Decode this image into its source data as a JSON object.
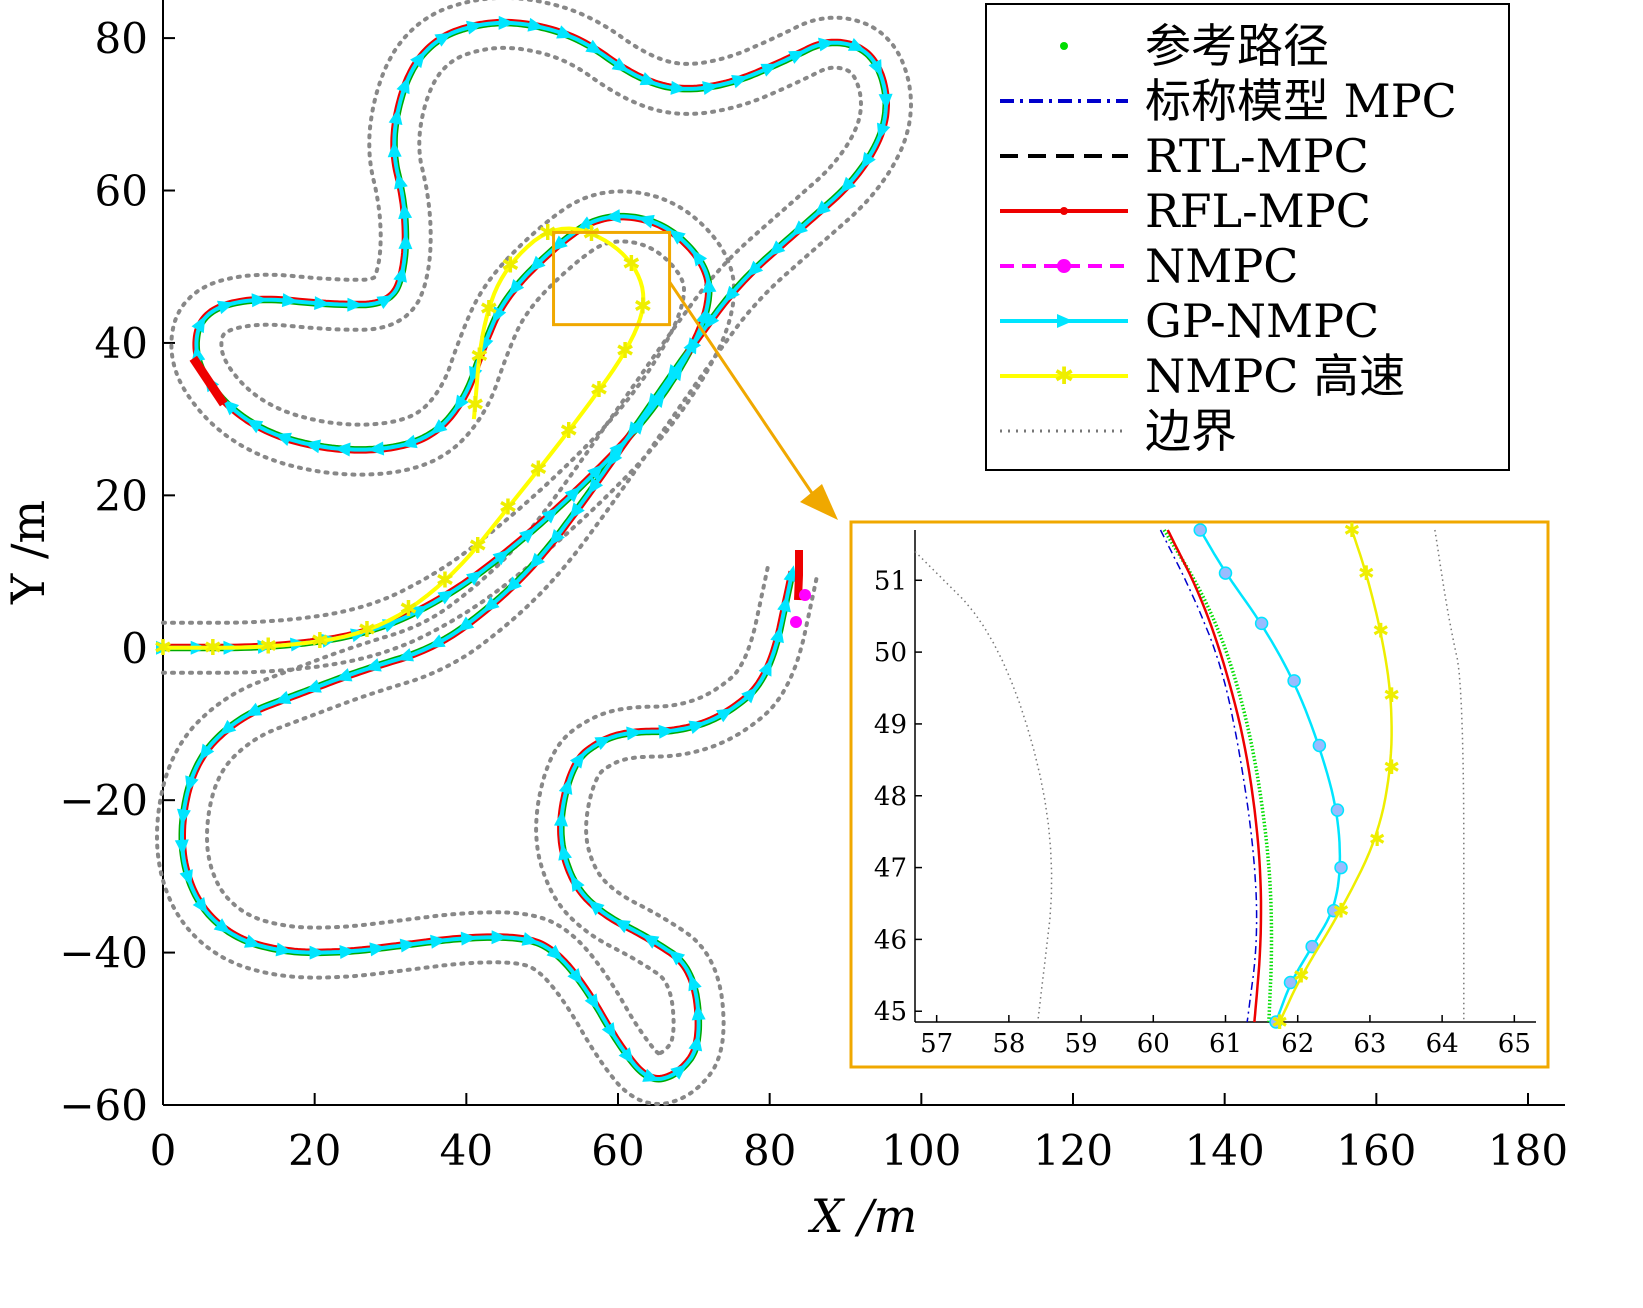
{
  "chart_data": [
    {
      "type": "line",
      "title": "",
      "xlabel": "X /m",
      "ylabel": "Y /m",
      "xlim": [
        0,
        180
      ],
      "ylim": [
        -60,
        85
      ],
      "xticks": [
        "0",
        "20",
        "40",
        "60",
        "80",
        "100",
        "120",
        "140",
        "160",
        "180"
      ],
      "yticks": [
        "−60",
        "−40",
        "−20",
        "0",
        "20",
        "40",
        "60",
        "80"
      ],
      "legend_position": "top-right",
      "legend": [
        {
          "label": "参考路径",
          "color": "#00dd00",
          "style": "dots"
        },
        {
          "label": "标称模型 MPC",
          "color": "#0000cc",
          "style": "dashdot"
        },
        {
          "label": "RTL-MPC",
          "color": "#000000",
          "style": "dashed"
        },
        {
          "label": "RFL-MPC",
          "color": "#ee0000",
          "style": "solid-dot"
        },
        {
          "label": "NMPC",
          "color": "#ff00ff",
          "style": "dashed-circle"
        },
        {
          "label": "GP-NMPC",
          "color": "#00e5ff",
          "style": "solid-triangle"
        },
        {
          "label": "NMPC 高速",
          "color": "#ffff00",
          "style": "solid-star"
        },
        {
          "label": "边界",
          "color": "#777777",
          "style": "dotted"
        }
      ],
      "reference_path": {
        "x": [
          0,
          15,
          28,
          38,
          46,
          54,
          62,
          68,
          72,
          72,
          66,
          58,
          52,
          45,
          42,
          40,
          36,
          30,
          22,
          14,
          8,
          4,
          5,
          12,
          22,
          30,
          32,
          32,
          30,
          32,
          36,
          42,
          48,
          55,
          62,
          68,
          75,
          82,
          88,
          94,
          96,
          92,
          84,
          76,
          70,
          63,
          56,
          50,
          44,
          36,
          26,
          18,
          10,
          4,
          2,
          4,
          9,
          16,
          24,
          32,
          40,
          48,
          52,
          56,
          60,
          64,
          68,
          71,
          70,
          64,
          58,
          54,
          52,
          54,
          58,
          62,
          68,
          74,
          80,
          83
        ],
        "y": [
          0,
          0,
          2,
          7,
          13,
          20,
          28,
          36,
          44,
          50,
          56,
          57,
          53,
          46,
          39,
          33,
          28,
          26,
          26,
          28,
          32,
          38,
          44,
          46,
          45,
          45,
          50,
          58,
          66,
          75,
          80,
          82,
          82,
          80,
          75,
          73,
          74,
          77,
          80,
          78,
          70,
          62,
          55,
          48,
          40,
          30,
          20,
          12,
          6,
          0,
          -3,
          -6,
          -9,
          -15,
          -25,
          -33,
          -38,
          -40,
          -40,
          -39,
          -38,
          -38,
          -40,
          -45,
          -52,
          -57,
          -56,
          -52,
          -42,
          -38,
          -35,
          -31,
          -24,
          -15,
          -12,
          -11,
          -11,
          -9,
          -4,
          10
        ]
      }
    },
    {
      "type": "line",
      "title": "",
      "xlabel": "",
      "ylabel": "",
      "xlim": [
        56.7,
        65.3
      ],
      "ylim": [
        44.85,
        51.7
      ],
      "xticks": [
        "57",
        "58",
        "59",
        "60",
        "61",
        "62",
        "63",
        "64",
        "65"
      ],
      "yticks": [
        "45",
        "46",
        "47",
        "48",
        "49",
        "50",
        "51"
      ],
      "series": [
        {
          "name": "边界",
          "color": "#777777",
          "style": "dotted",
          "x": [
            56.7,
            57.9,
            58.7,
            58.4
          ],
          "y": [
            51.4,
            50.2,
            47.4,
            44.85
          ]
        },
        {
          "name": "边界",
          "color": "#777777",
          "style": "dotted",
          "x": [
            63.9,
            64.1,
            64.3,
            64.3
          ],
          "y": [
            51.7,
            50.4,
            49.5,
            44.85
          ]
        },
        {
          "name": "参考路径",
          "color": "#00dd00",
          "style": "dots",
          "x": [
            60.15,
            60.7,
            61.1,
            61.4,
            61.6,
            61.65,
            61.6
          ],
          "y": [
            51.7,
            50.8,
            49.8,
            48.6,
            47.2,
            46.0,
            44.85
          ]
        },
        {
          "name": "标称模型 MPC",
          "color": "#0000cc",
          "style": "dashdot",
          "x": [
            60.1,
            60.55,
            60.95,
            61.2,
            61.4,
            61.45,
            61.3
          ],
          "y": [
            51.7,
            50.8,
            49.8,
            48.6,
            47.2,
            46.0,
            44.85
          ]
        },
        {
          "name": "RFL-MPC",
          "color": "#ee0000",
          "style": "solid",
          "x": [
            60.2,
            60.65,
            61.0,
            61.3,
            61.48,
            61.5,
            61.4
          ],
          "y": [
            51.7,
            50.8,
            49.8,
            48.6,
            47.2,
            46.0,
            44.85
          ]
        },
        {
          "name": "GP-NMPC",
          "color": "#00e5ff",
          "style": "solid-triangle",
          "x": [
            60.65,
            61.0,
            61.5,
            61.95,
            62.3,
            62.55,
            62.6,
            62.5,
            62.2,
            61.9,
            61.7
          ],
          "y": [
            51.7,
            51.1,
            50.4,
            49.6,
            48.7,
            47.8,
            47.0,
            46.4,
            45.9,
            45.4,
            44.85
          ]
        },
        {
          "name": "NMPC 高速",
          "color": "#ffff00",
          "style": "solid-star",
          "x": [
            62.75,
            62.95,
            63.15,
            63.3,
            63.3,
            63.1,
            62.6,
            62.05,
            61.75
          ],
          "y": [
            51.7,
            51.1,
            50.3,
            49.4,
            48.4,
            47.4,
            46.4,
            45.5,
            44.85
          ]
        }
      ]
    }
  ]
}
